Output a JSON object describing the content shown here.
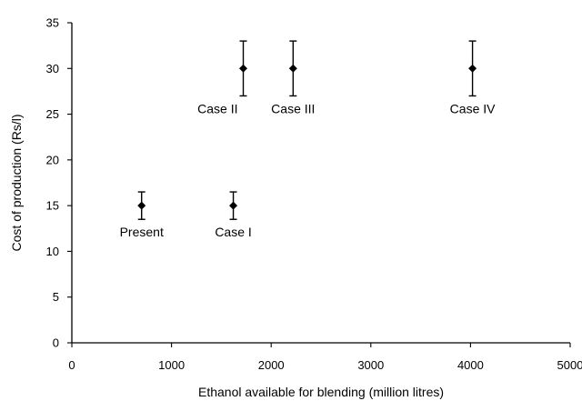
{
  "chart_data": {
    "type": "scatter",
    "xlabel": "Ethanol available for blending (million litres)",
    "ylabel": "Cost of production (Rs/l)",
    "xlim": [
      0,
      5000
    ],
    "ylim": [
      0,
      35
    ],
    "x_ticks": [
      0,
      1000,
      2000,
      3000,
      4000,
      5000
    ],
    "y_ticks": [
      0,
      5,
      10,
      15,
      20,
      25,
      30,
      35
    ],
    "grid": false,
    "legend": "none",
    "marker": "diamond",
    "points": [
      {
        "label": "Present",
        "x": 700,
        "y": 15,
        "y_low": 13.5,
        "y_high": 16.5,
        "label_position": "below"
      },
      {
        "label": "Case I",
        "x": 1620,
        "y": 15,
        "y_low": 13.5,
        "y_high": 16.5,
        "label_position": "below"
      },
      {
        "label": "Case II",
        "x": 1720,
        "y": 30,
        "y_low": 27,
        "y_high": 33,
        "label_position": "below-left"
      },
      {
        "label": "Case III",
        "x": 2220,
        "y": 30,
        "y_low": 27,
        "y_high": 33,
        "label_position": "below"
      },
      {
        "label": "Case IV",
        "x": 4020,
        "y": 30,
        "y_low": 27,
        "y_high": 33,
        "label_position": "below"
      }
    ]
  }
}
